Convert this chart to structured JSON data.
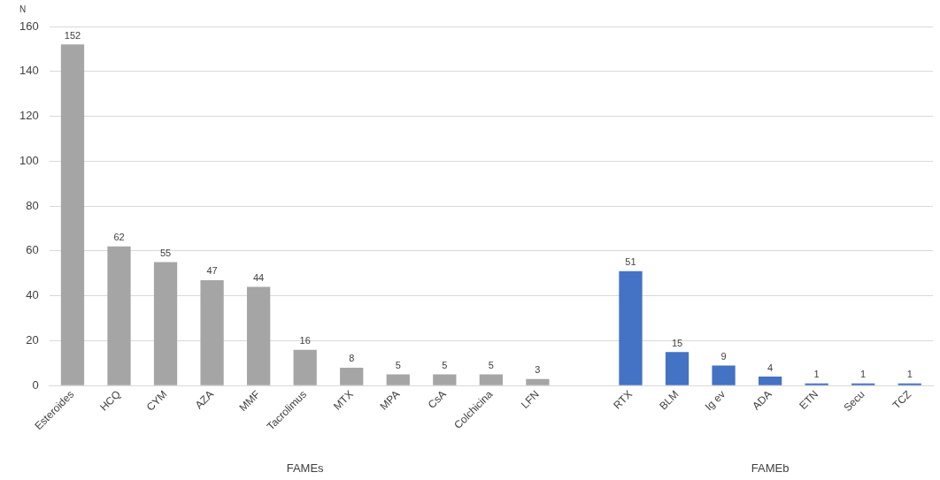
{
  "chart_data": {
    "type": "bar",
    "ylabel": "N",
    "categories": [
      "Esteroides",
      "HCQ",
      "CYM",
      "AZA",
      "MMF",
      "Tacrolimus",
      "MTX",
      "MPA",
      "CsA",
      "Colchicina",
      "LFN",
      null,
      "RTX",
      "BLM",
      "Ig ev",
      "ADA",
      "ETN",
      "Secu",
      "TCZ"
    ],
    "values": [
      152,
      62,
      55,
      47,
      44,
      16,
      8,
      5,
      5,
      5,
      3,
      null,
      51,
      15,
      9,
      4,
      1,
      1,
      1
    ],
    "colors": [
      "#a5a5a5",
      "#a5a5a5",
      "#a5a5a5",
      "#a5a5a5",
      "#a5a5a5",
      "#a5a5a5",
      "#a5a5a5",
      "#a5a5a5",
      "#a5a5a5",
      "#a5a5a5",
      "#a5a5a5",
      "#a5a5a5",
      "#4472c4",
      "#4472c4",
      "#4472c4",
      "#4472c4",
      "#4472c4",
      "#4472c4",
      "#4472c4"
    ],
    "ylim": [
      0,
      160
    ],
    "yticks": [
      0,
      20,
      40,
      60,
      80,
      100,
      120,
      140,
      160
    ],
    "grid": "y",
    "legend": false,
    "data_labels": true,
    "annotations": [
      "FAMEs",
      "FAMEb"
    ]
  }
}
